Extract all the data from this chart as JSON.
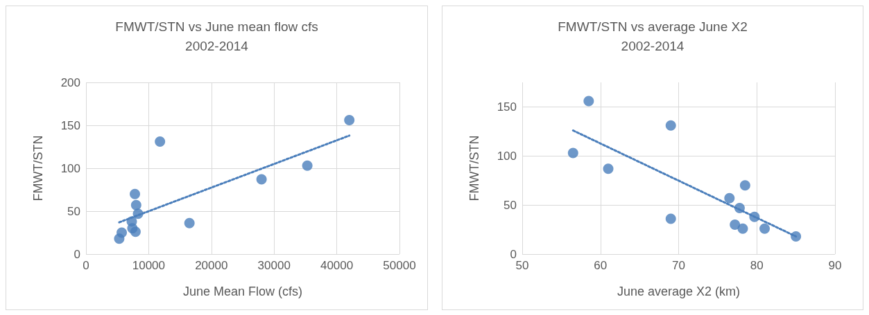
{
  "chart_data": [
    {
      "type": "scatter",
      "title": "FMWT/STN vs June mean flow cfs\n2002-2014",
      "xlabel": "June Mean Flow (cfs)",
      "ylabel": "FMWT/STN",
      "xlim": [
        0,
        50000
      ],
      "xticks": [
        0,
        10000,
        20000,
        30000,
        40000,
        50000
      ],
      "ylim": [
        0,
        200
      ],
      "yticks": [
        0,
        50,
        100,
        150,
        200
      ],
      "grid": true,
      "marker": "circle",
      "series": [
        {
          "color": "#4a7ebb",
          "x": [
            42000,
            11800,
            35300,
            28000,
            7800,
            8000,
            8300,
            7300,
            16500,
            7400,
            7900,
            5700,
            5300
          ],
          "values": [
            156,
            131,
            103,
            87,
            70,
            57,
            47,
            38,
            36,
            30,
            26,
            25,
            18
          ]
        },
        {
          "type": "line",
          "color": "#4a7ebb",
          "line_style": "dotted",
          "marker": "none",
          "x": [
            5300,
            42000
          ],
          "values": [
            37,
            138
          ]
        }
      ]
    },
    {
      "type": "scatter",
      "title": "FMWT/STN vs average June X2\n2002-2014",
      "xlabel": "June average X2 (km)",
      "ylabel": "FMWT/STN",
      "xlim": [
        50,
        90
      ],
      "xticks": [
        50,
        60,
        70,
        80,
        90
      ],
      "ylim": [
        0,
        175
      ],
      "yticks": [
        0,
        50,
        100,
        150
      ],
      "grid": true,
      "marker": "circle",
      "series": [
        {
          "color": "#4a7ebb",
          "x": [
            58.5,
            69,
            56.5,
            61,
            78.5,
            76.5,
            77.8,
            79.7,
            69,
            77.2,
            78.2,
            81,
            85
          ],
          "values": [
            156,
            131,
            103,
            87,
            70,
            57,
            47,
            38,
            36,
            30,
            26,
            26,
            18
          ]
        },
        {
          "type": "line",
          "color": "#4a7ebb",
          "line_style": "dotted",
          "marker": "none",
          "x": [
            56.5,
            85
          ],
          "values": [
            126,
            18
          ]
        }
      ]
    }
  ]
}
